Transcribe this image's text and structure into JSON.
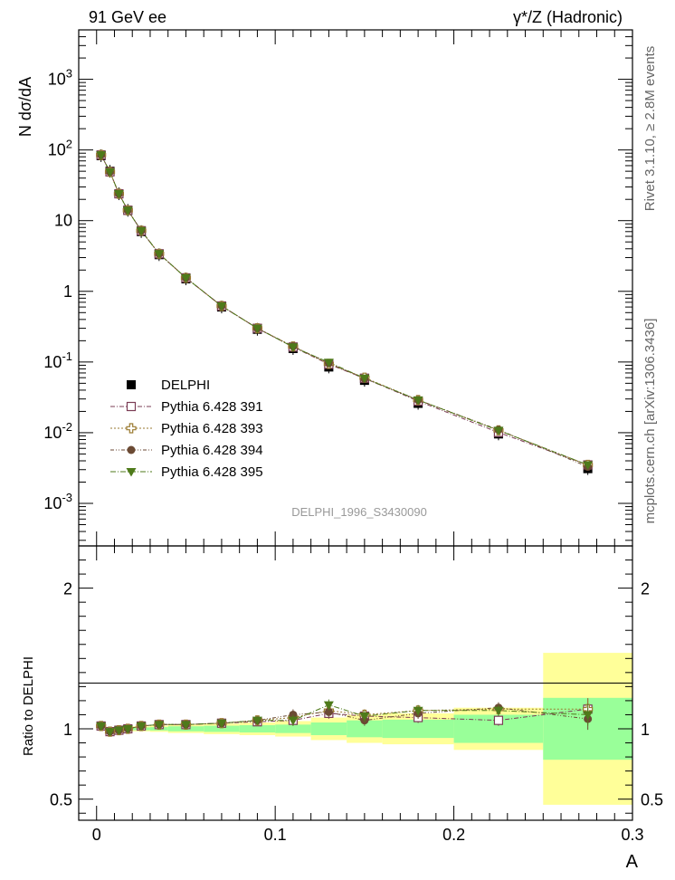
{
  "header": {
    "left": "91 GeV ee",
    "right": "γ*/Z (Hadronic)"
  },
  "side_labels": {
    "rivet": "Rivet 3.1.10, ≥ 2.8M events",
    "mcplots": "mcplots.cern.ch [arXiv:1306.3436]"
  },
  "watermark": "DELPHI_1996_S3430090",
  "chart_data": [
    {
      "type": "scatter",
      "panel": "main",
      "ylabel": "N dσ/dA",
      "xlabel": "A",
      "xlim": [
        -0.01,
        0.3
      ],
      "ylim": [
        0.00025,
        5000
      ],
      "yscale": "log",
      "grid": false,
      "legend_position": "bottom-left",
      "y_tick_labels": [
        "10^-3",
        "10^-2",
        "10^-1",
        "1",
        "10",
        "10^2",
        "10^3"
      ],
      "x": [
        0.0025,
        0.0075,
        0.0125,
        0.0175,
        0.025,
        0.035,
        0.05,
        0.07,
        0.09,
        0.11,
        0.13,
        0.15,
        0.18,
        0.225,
        0.275
      ],
      "series": [
        {
          "name": "DELPHI",
          "marker": "square-filled",
          "color": "#000000",
          "values": [
            83,
            50,
            24,
            14,
            7.0,
            3.3,
            1.5,
            0.6,
            0.29,
            0.155,
            0.085,
            0.055,
            0.026,
            0.0096,
            0.0031
          ]
        },
        {
          "name": "Pythia 6.428 391",
          "marker": "square-open",
          "color": "#7b3c55",
          "values": [
            85,
            49,
            24,
            14,
            7.2,
            3.4,
            1.55,
            0.62,
            0.3,
            0.163,
            0.093,
            0.059,
            0.028,
            0.0101,
            0.0035
          ]
        },
        {
          "name": "Pythia 6.428 393",
          "marker": "cross-open",
          "color": "#9a7a30",
          "values": [
            85,
            49,
            24,
            14,
            7.2,
            3.4,
            1.55,
            0.62,
            0.3,
            0.166,
            0.094,
            0.06,
            0.029,
            0.0108,
            0.0035
          ]
        },
        {
          "name": "Pythia 6.428 394",
          "marker": "circle-filled",
          "color": "#6b4a34",
          "values": [
            85,
            49,
            24,
            14,
            7.2,
            3.4,
            1.55,
            0.62,
            0.3,
            0.167,
            0.096,
            0.058,
            0.029,
            0.011,
            0.0033
          ]
        },
        {
          "name": "Pythia 6.428 395",
          "marker": "triangle-down",
          "color": "#4e7a1a",
          "values": [
            85,
            49,
            24,
            14,
            7.2,
            3.4,
            1.55,
            0.62,
            0.3,
            0.163,
            0.099,
            0.059,
            0.029,
            0.0108,
            0.0035
          ]
        }
      ]
    },
    {
      "type": "scatter",
      "panel": "ratio",
      "ylabel": "Ratio to DELPHI",
      "xlabel": "A",
      "xlim": [
        -0.01,
        0.3
      ],
      "ylim": [
        0.35,
        2.3
      ],
      "x_ticks": [
        0,
        0.1,
        0.2,
        0.3
      ],
      "y_ticks": [
        0.5,
        1,
        2
      ],
      "reference": 1,
      "bins": [
        [
          0.0,
          0.005
        ],
        [
          0.005,
          0.01
        ],
        [
          0.01,
          0.015
        ],
        [
          0.015,
          0.02
        ],
        [
          0.02,
          0.03
        ],
        [
          0.03,
          0.04
        ],
        [
          0.04,
          0.06
        ],
        [
          0.06,
          0.08
        ],
        [
          0.08,
          0.1
        ],
        [
          0.1,
          0.12
        ],
        [
          0.12,
          0.14
        ],
        [
          0.14,
          0.16
        ],
        [
          0.16,
          0.2
        ],
        [
          0.2,
          0.25
        ],
        [
          0.25,
          0.3
        ]
      ],
      "band_outer": [
        0.01,
        0.012,
        0.013,
        0.015,
        0.018,
        0.022,
        0.03,
        0.038,
        0.045,
        0.055,
        0.08,
        0.1,
        0.11,
        0.15,
        0.54
      ],
      "band_inner": [
        0.005,
        0.006,
        0.007,
        0.008,
        0.01,
        0.012,
        0.018,
        0.022,
        0.026,
        0.03,
        0.045,
        0.06,
        0.065,
        0.1,
        0.22
      ],
      "x": [
        0.0025,
        0.0075,
        0.0125,
        0.0175,
        0.025,
        0.035,
        0.05,
        0.07,
        0.09,
        0.11,
        0.13,
        0.15,
        0.18,
        0.225,
        0.275
      ],
      "series": [
        {
          "name": "Pythia 6.428 391",
          "values": [
            1.02,
            0.98,
            0.99,
            1.0,
            1.02,
            1.03,
            1.03,
            1.04,
            1.05,
            1.06,
            1.11,
            1.09,
            1.08,
            1.06,
            1.14
          ]
        },
        {
          "name": "Pythia 6.428 393",
          "values": [
            1.02,
            0.98,
            0.99,
            1.0,
            1.02,
            1.03,
            1.03,
            1.04,
            1.06,
            1.08,
            1.13,
            1.1,
            1.13,
            1.14,
            1.14
          ]
        },
        {
          "name": "Pythia 6.428 394",
          "values": [
            1.02,
            0.98,
            0.99,
            1.0,
            1.02,
            1.03,
            1.03,
            1.04,
            1.06,
            1.1,
            1.12,
            1.06,
            1.11,
            1.15,
            1.07
          ]
        },
        {
          "name": "Pythia 6.428 395",
          "values": [
            1.02,
            0.98,
            0.99,
            1.0,
            1.02,
            1.03,
            1.03,
            1.04,
            1.06,
            1.06,
            1.17,
            1.09,
            1.13,
            1.13,
            1.1
          ]
        }
      ]
    }
  ]
}
